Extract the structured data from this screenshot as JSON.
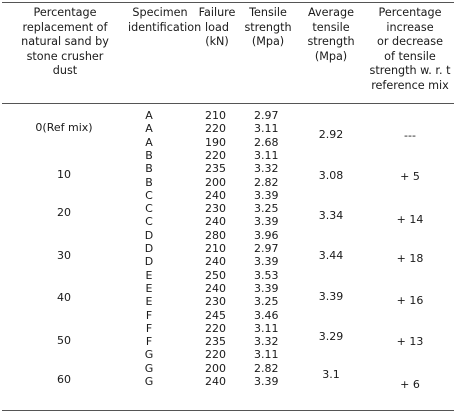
{
  "headers": {
    "percentage": [
      "Percentage",
      "replacement of",
      "natural sand by",
      "stone crusher",
      "dust"
    ],
    "specimen": [
      "Specimen",
      "identification"
    ],
    "failure_load": [
      "Failure",
      "load",
      "(kN)"
    ],
    "tensile": [
      "Tensile",
      "strength",
      "(Mpa)"
    ],
    "average": [
      "Average",
      "tensile",
      "strength",
      "(Mpa)"
    ],
    "change": [
      "Percentage",
      "increase",
      "or decrease",
      "of tensile",
      "strength  w. r. t",
      "reference mix"
    ]
  },
  "groups": [
    {
      "percentage": "0(Ref mix)",
      "average": "2.92",
      "change": "---",
      "rows": [
        {
          "specimen": "A",
          "load": "210",
          "tensile": "2.97"
        },
        {
          "specimen": "A",
          "load": "220",
          "tensile": "3.11"
        },
        {
          "specimen": "A",
          "load": "190",
          "tensile": "2.68"
        }
      ]
    },
    {
      "percentage": "10",
      "average": "3.08",
      "change": "+ 5",
      "rows": [
        {
          "specimen": "B",
          "load": "220",
          "tensile": "3.11"
        },
        {
          "specimen": "B",
          "load": "235",
          "tensile": "3.32"
        },
        {
          "specimen": "B",
          "load": "200",
          "tensile": "2.82"
        }
      ]
    },
    {
      "percentage": "20",
      "average": "3.34",
      "change": "+ 14",
      "rows": [
        {
          "specimen": "C",
          "load": "240",
          "tensile": "3.39"
        },
        {
          "specimen": "C",
          "load": "230",
          "tensile": "3.25"
        },
        {
          "specimen": "C",
          "load": "240",
          "tensile": "3.39"
        }
      ]
    },
    {
      "percentage": "30",
      "average": "3.44",
      "change": "+ 18",
      "rows": [
        {
          "specimen": "D",
          "load": "280",
          "tensile": "3.96"
        },
        {
          "specimen": "D",
          "load": "210",
          "tensile": "2.97"
        },
        {
          "specimen": "D",
          "load": "240",
          "tensile": "3.39"
        }
      ]
    },
    {
      "percentage": "40",
      "average": "3.39",
      "change": "+ 16",
      "rows": [
        {
          "specimen": "E",
          "load": "250",
          "tensile": "3.53"
        },
        {
          "specimen": "E",
          "load": "240",
          "tensile": "3.39"
        },
        {
          "specimen": "E",
          "load": "230",
          "tensile": "3.25"
        }
      ]
    },
    {
      "percentage": "50",
      "average": "3.29",
      "change": "+ 13",
      "rows": [
        {
          "specimen": "F",
          "load": "245",
          "tensile": "3.46"
        },
        {
          "specimen": "F",
          "load": "220",
          "tensile": "3.11"
        },
        {
          "specimen": "F",
          "load": "235",
          "tensile": "3.32"
        }
      ]
    },
    {
      "percentage": "60",
      "average": "3.1",
      "change": "+ 6",
      "rows": [
        {
          "specimen": "G",
          "load": "220",
          "tensile": "3.11"
        },
        {
          "specimen": "G",
          "load": "200",
          "tensile": "2.82"
        },
        {
          "specimen": "G",
          "load": "240",
          "tensile": "3.39"
        }
      ]
    }
  ]
}
